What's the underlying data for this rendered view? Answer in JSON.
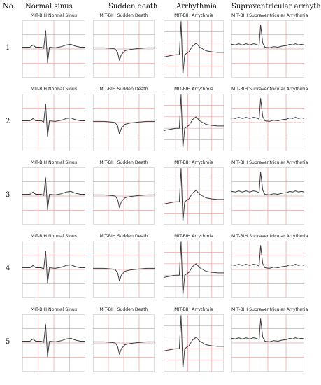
{
  "header": {
    "no_label": "No.",
    "columns": [
      "Normal sinus",
      "Sudden death",
      "Arrhythmia",
      "Supraventricular arrhythmia"
    ]
  },
  "rows": [
    "1",
    "2",
    "3",
    "4",
    "5"
  ],
  "plot_titles": [
    "MIT-BIH Normal Sinus",
    "MIT-BIH Sudden Death",
    "MIT-BIH Arrythmia",
    "MIT-BIH Supraventricular Arrythmia"
  ],
  "colors": {
    "grid": "#e9a3a3",
    "trace": "#3a3a3a",
    "frame": "#c9c9c9"
  },
  "chart_data": {
    "type": "line",
    "layout": "5x4 grid of ECG beat plots",
    "grid": true,
    "axes_visible": false
  }
}
